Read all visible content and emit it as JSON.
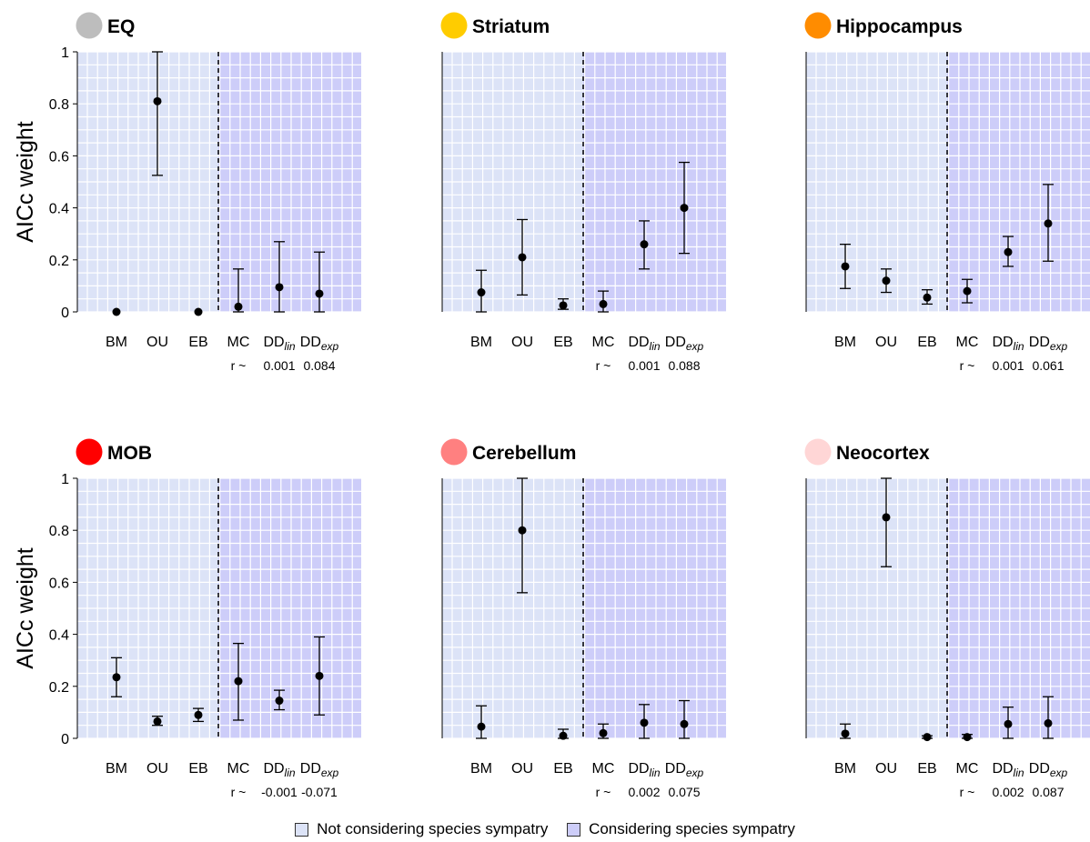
{
  "colors": {
    "not_sympatry_bg": "#dce3f7",
    "sympatry_bg": "#cdcdf9",
    "grid": "#ffffff",
    "point": "#000000"
  },
  "legend": {
    "items": [
      {
        "label": "Not considering species sympatry",
        "color": "#dce3f7"
      },
      {
        "label": "Considering species sympatry",
        "color": "#cdcdf9"
      }
    ]
  },
  "r_label": "r ~",
  "chart_data": [
    {
      "type": "scatter",
      "title": "EQ",
      "title_dot_color": "#bdbdbd",
      "ylabel": "AICc weight",
      "ylim": [
        0,
        1
      ],
      "yticks": [
        "0",
        "0.2",
        "0.4",
        "0.6",
        "0.8",
        "1"
      ],
      "categories": [
        "BM",
        "OU",
        "EB",
        "MC",
        "DD_lin",
        "DD_exp"
      ],
      "values": [
        0.0,
        0.81,
        0.0,
        0.02,
        0.095,
        0.07
      ],
      "lower": [
        0.0,
        0.525,
        0.0,
        0.0,
        0.0,
        0.0
      ],
      "upper": [
        0.0,
        1.0,
        0.0,
        0.165,
        0.27,
        0.23
      ],
      "r_values": [
        "0.001",
        "0.084"
      ]
    },
    {
      "type": "scatter",
      "title": "Striatum",
      "title_dot_color": "#ffcc00",
      "ylabel": "",
      "ylim": [
        0,
        1
      ],
      "yticks": [],
      "categories": [
        "BM",
        "OU",
        "EB",
        "MC",
        "DD_lin",
        "DD_exp"
      ],
      "values": [
        0.075,
        0.21,
        0.025,
        0.03,
        0.26,
        0.4
      ],
      "lower": [
        0.0,
        0.065,
        0.01,
        0.0,
        0.165,
        0.225
      ],
      "upper": [
        0.16,
        0.355,
        0.05,
        0.08,
        0.35,
        0.575
      ],
      "r_values": [
        "0.001",
        "0.088"
      ]
    },
    {
      "type": "scatter",
      "title": "Hippocampus",
      "title_dot_color": "#ff8c00",
      "ylabel": "",
      "ylim": [
        0,
        1
      ],
      "yticks": [],
      "categories": [
        "BM",
        "OU",
        "EB",
        "MC",
        "DD_lin",
        "DD_exp"
      ],
      "values": [
        0.175,
        0.12,
        0.055,
        0.08,
        0.23,
        0.34
      ],
      "lower": [
        0.09,
        0.075,
        0.03,
        0.035,
        0.175,
        0.195
      ],
      "upper": [
        0.26,
        0.165,
        0.085,
        0.125,
        0.29,
        0.49
      ],
      "r_values": [
        "0.001",
        "0.061"
      ]
    },
    {
      "type": "scatter",
      "title": "MOB",
      "title_dot_color": "#ff0000",
      "ylabel": "AICc weight",
      "ylim": [
        0,
        1
      ],
      "yticks": [
        "0",
        "0.2",
        "0.4",
        "0.6",
        "0.8",
        "1"
      ],
      "categories": [
        "BM",
        "OU",
        "EB",
        "MC",
        "DD_lin",
        "DD_exp"
      ],
      "values": [
        0.235,
        0.065,
        0.09,
        0.22,
        0.145,
        0.24
      ],
      "lower": [
        0.16,
        0.05,
        0.065,
        0.07,
        0.11,
        0.09
      ],
      "upper": [
        0.31,
        0.085,
        0.115,
        0.365,
        0.185,
        0.39
      ],
      "r_values": [
        "-0.001",
        "-0.071"
      ]
    },
    {
      "type": "scatter",
      "title": "Cerebellum",
      "title_dot_color": "#ff8080",
      "ylabel": "",
      "ylim": [
        0,
        1
      ],
      "yticks": [],
      "categories": [
        "BM",
        "OU",
        "EB",
        "MC",
        "DD_lin",
        "DD_exp"
      ],
      "values": [
        0.045,
        0.8,
        0.01,
        0.02,
        0.06,
        0.055
      ],
      "lower": [
        0.0,
        0.56,
        0.0,
        0.0,
        0.0,
        0.0
      ],
      "upper": [
        0.125,
        1.0,
        0.035,
        0.055,
        0.13,
        0.145
      ],
      "r_values": [
        "0.002",
        "0.075"
      ]
    },
    {
      "type": "scatter",
      "title": "Neocortex",
      "title_dot_color": "#ffd6d6",
      "ylabel": "",
      "ylim": [
        0,
        1
      ],
      "yticks": [],
      "categories": [
        "BM",
        "OU",
        "EB",
        "MC",
        "DD_lin",
        "DD_exp"
      ],
      "values": [
        0.018,
        0.85,
        0.005,
        0.005,
        0.055,
        0.058
      ],
      "lower": [
        0.0,
        0.66,
        0.0,
        0.0,
        0.0,
        0.0
      ],
      "upper": [
        0.055,
        1.0,
        0.01,
        0.015,
        0.12,
        0.16
      ],
      "r_values": [
        "0.002",
        "0.087"
      ]
    }
  ]
}
